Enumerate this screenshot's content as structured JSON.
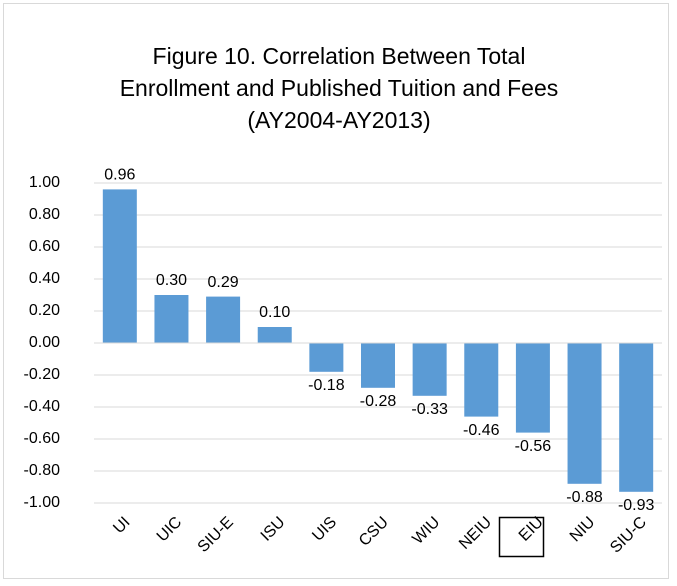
{
  "chart_data": {
    "type": "bar",
    "title": "Figure 10. Correlation Between Total Enrollment and Published Tuition and Fees (AY2004-AY2013)",
    "categories": [
      "UI",
      "UIC",
      "SIU-E",
      "ISU",
      "UIS",
      "CSU",
      "WIU",
      "NEIU",
      "EIU",
      "NIU",
      "SIU-C"
    ],
    "values": [
      0.96,
      0.3,
      0.29,
      0.1,
      -0.18,
      -0.28,
      -0.33,
      -0.46,
      -0.56,
      -0.88,
      -0.93
    ],
    "value_labels": [
      "0.96",
      "0.30",
      "0.29",
      "0.10",
      "-0.18",
      "-0.28",
      "-0.33",
      "-0.46",
      "-0.56",
      "-0.88",
      "-0.93"
    ],
    "color": "#5b9bd5",
    "ylim": [
      -1,
      1
    ],
    "yticks": [
      {
        "value": -1,
        "label": "-1.00"
      },
      {
        "value": -0.8,
        "label": "-0.80"
      },
      {
        "value": -0.6,
        "label": "-0.60"
      },
      {
        "value": -0.4,
        "label": "-0.40"
      },
      {
        "value": -0.2,
        "label": "-0.20"
      },
      {
        "value": 0,
        "label": "0.00"
      },
      {
        "value": 0.2,
        "label": "0.20"
      },
      {
        "value": 0.4,
        "label": "0.40"
      },
      {
        "value": 0.6,
        "label": "0.60"
      },
      {
        "value": 0.8,
        "label": "0.80"
      },
      {
        "value": 1,
        "label": "1.00"
      }
    ],
    "grid": true
  }
}
